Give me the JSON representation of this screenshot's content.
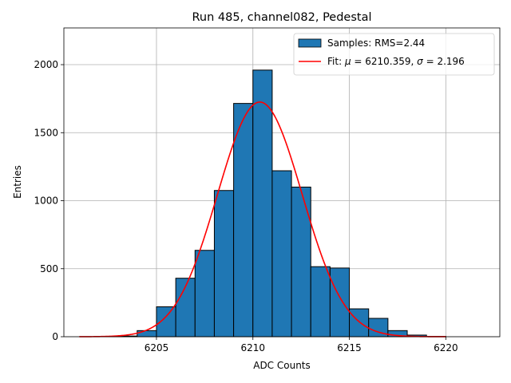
{
  "chart_data": {
    "type": "bar",
    "title": "Run 485, channel082, Pedestal",
    "xlabel": "ADC Counts",
    "ylabel": "Entries",
    "xlim": [
      6200.2,
      6222.8
    ],
    "ylim": [
      0,
      2270
    ],
    "grid": true,
    "legend_position": "top-right",
    "xticks": [
      6205,
      6210,
      6215,
      6220
    ],
    "yticks": [
      0,
      500,
      1000,
      1500,
      2000
    ],
    "histogram": {
      "name": "Samples: RMS=2.44",
      "color": "#1f77b4",
      "edgecolor": "#000000",
      "bin_edges": [
        6202,
        6203,
        6204,
        6205,
        6206,
        6207,
        6208,
        6209,
        6210,
        6211,
        6212,
        6213,
        6214,
        6215,
        6216,
        6217,
        6218,
        6219,
        6220
      ],
      "counts": [
        2,
        5,
        45,
        220,
        430,
        635,
        1075,
        1715,
        1960,
        1220,
        1100,
        515,
        505,
        205,
        135,
        45,
        12,
        2
      ]
    },
    "fit": {
      "name_prefix": "Fit: ",
      "mu_symbol": "μ",
      "mu_text": " = 6210.359, ",
      "sigma_symbol": "σ",
      "sigma_text": " = 2.196",
      "color": "#ff0000",
      "mu": 6210.359,
      "sigma": 2.196,
      "amplitude": 1725,
      "x_range": [
        6201,
        6220
      ]
    }
  }
}
